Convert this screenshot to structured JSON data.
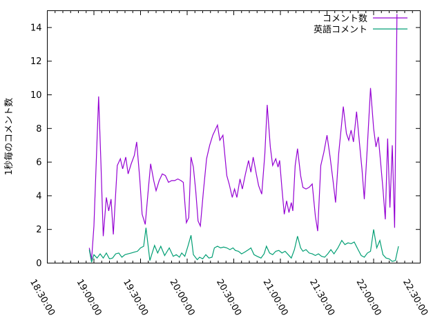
{
  "window": {
    "background": "#ffffff",
    "border_color": "#000000",
    "text_color": "#000000"
  },
  "chart_data": {
    "type": "line",
    "title": "",
    "xlabel": "",
    "ylabel": "1秒毎のコメント数",
    "grid": false,
    "x_axis": {
      "kind": "time",
      "start_label": "18:30:00",
      "end_label": "22:30:00",
      "range_minutes": [
        0,
        240
      ],
      "major_step_minutes": 30,
      "minor_step_minutes": 5,
      "labels_rotated": true,
      "tick_labels": [
        "18:30:00",
        "19:00:00",
        "19:30:00",
        "20:00:00",
        "20:30:00",
        "21:00:00",
        "21:30:00",
        "22:00:00",
        "22:30:00"
      ]
    },
    "y_axis": {
      "min": 0,
      "max": 15,
      "label_step": 2,
      "tick_labels": [
        "0",
        "2",
        "4",
        "6",
        "8",
        "10",
        "12",
        "14"
      ]
    },
    "legend": {
      "position": "top-right",
      "entries": [
        {
          "label": "コメント数",
          "color": "#9400d3"
        },
        {
          "label": "英語コメント",
          "color": "#009e73"
        }
      ]
    },
    "series": [
      {
        "name": "コメント数",
        "color": "#9400d3",
        "points": [
          [
            27,
            0.9
          ],
          [
            28.5,
            0.2
          ],
          [
            30,
            2.2
          ],
          [
            33,
            9.9
          ],
          [
            34.5,
            6.0
          ],
          [
            36,
            1.6
          ],
          [
            38,
            3.9
          ],
          [
            39.5,
            3.1
          ],
          [
            41,
            3.8
          ],
          [
            42.5,
            1.7
          ],
          [
            45,
            5.8
          ],
          [
            47,
            6.2
          ],
          [
            48.5,
            5.6
          ],
          [
            50.5,
            6.3
          ],
          [
            52,
            5.3
          ],
          [
            54,
            5.9
          ],
          [
            56,
            6.4
          ],
          [
            57.5,
            7.2
          ],
          [
            59.5,
            5.0
          ],
          [
            61,
            2.9
          ],
          [
            63,
            2.3
          ],
          [
            65,
            4.4
          ],
          [
            66.5,
            5.9
          ],
          [
            68.5,
            4.9
          ],
          [
            70,
            4.3
          ],
          [
            72,
            4.9
          ],
          [
            74,
            5.3
          ],
          [
            76,
            5.2
          ],
          [
            78,
            4.8
          ],
          [
            80,
            4.9
          ],
          [
            82,
            4.9
          ],
          [
            84,
            5.0
          ],
          [
            86,
            4.9
          ],
          [
            87.5,
            4.8
          ],
          [
            89.5,
            2.4
          ],
          [
            91,
            2.7
          ],
          [
            92.5,
            6.3
          ],
          [
            94,
            5.7
          ],
          [
            95.5,
            4.3
          ],
          [
            97,
            2.5
          ],
          [
            98.5,
            2.2
          ],
          [
            100.5,
            4.3
          ],
          [
            102.5,
            6.2
          ],
          [
            104.5,
            7.0
          ],
          [
            106.5,
            7.6
          ],
          [
            109.5,
            8.2
          ],
          [
            111,
            7.3
          ],
          [
            113,
            7.6
          ],
          [
            115.5,
            5.2
          ],
          [
            117,
            4.7
          ],
          [
            119,
            3.9
          ],
          [
            120.5,
            4.4
          ],
          [
            122,
            3.9
          ],
          [
            124,
            5.0
          ],
          [
            125.5,
            4.4
          ],
          [
            127.5,
            5.3
          ],
          [
            129.5,
            6.1
          ],
          [
            131,
            5.4
          ],
          [
            132.5,
            6.3
          ],
          [
            134.5,
            5.3
          ],
          [
            136,
            4.6
          ],
          [
            138,
            4.1
          ],
          [
            140,
            6.5
          ],
          [
            141.5,
            9.4
          ],
          [
            143.5,
            6.9
          ],
          [
            145,
            5.8
          ],
          [
            147,
            6.2
          ],
          [
            148.5,
            5.7
          ],
          [
            149.5,
            6.1
          ],
          [
            151,
            4.4
          ],
          [
            152.5,
            2.9
          ],
          [
            154,
            3.7
          ],
          [
            155.5,
            3.0
          ],
          [
            157,
            3.6
          ],
          [
            158,
            3.1
          ],
          [
            159.5,
            5.8
          ],
          [
            161,
            6.8
          ],
          [
            163,
            5.2
          ],
          [
            164.5,
            4.5
          ],
          [
            166.5,
            4.4
          ],
          [
            168.5,
            4.5
          ],
          [
            170.5,
            4.7
          ],
          [
            172.5,
            2.8
          ],
          [
            174,
            1.9
          ],
          [
            176,
            5.8
          ],
          [
            178,
            6.6
          ],
          [
            180,
            7.6
          ],
          [
            182,
            6.3
          ],
          [
            184,
            4.8
          ],
          [
            185.5,
            3.6
          ],
          [
            187.5,
            6.5
          ],
          [
            190.5,
            9.3
          ],
          [
            192.5,
            7.7
          ],
          [
            194,
            7.3
          ],
          [
            195.5,
            7.9
          ],
          [
            197,
            7.2
          ],
          [
            199,
            9.0
          ],
          [
            201,
            7.0
          ],
          [
            202.5,
            5.6
          ],
          [
            204,
            3.8
          ],
          [
            206,
            7.0
          ],
          [
            208,
            10.4
          ],
          [
            210,
            8.0
          ],
          [
            211.5,
            6.9
          ],
          [
            213,
            7.5
          ],
          [
            214.5,
            6.0
          ],
          [
            216,
            4.4
          ],
          [
            217.5,
            2.6
          ],
          [
            219,
            7.4
          ],
          [
            220.5,
            3.3
          ],
          [
            222,
            7.0
          ],
          [
            223.5,
            2.1
          ],
          [
            225,
            14.8
          ]
        ]
      },
      {
        "name": "英語コメント",
        "color": "#009e73",
        "points": [
          [
            27,
            0.8
          ],
          [
            28.5,
            0.05
          ],
          [
            30,
            0.5
          ],
          [
            32,
            0.3
          ],
          [
            34,
            0.55
          ],
          [
            36,
            0.3
          ],
          [
            38,
            0.6
          ],
          [
            40,
            0.25
          ],
          [
            42,
            0.3
          ],
          [
            44,
            0.55
          ],
          [
            46,
            0.6
          ],
          [
            48,
            0.35
          ],
          [
            50,
            0.5
          ],
          [
            52,
            0.55
          ],
          [
            54,
            0.6
          ],
          [
            56,
            0.65
          ],
          [
            58,
            0.7
          ],
          [
            60,
            0.9
          ],
          [
            62,
            1.0
          ],
          [
            63.5,
            2.1
          ],
          [
            66,
            0.15
          ],
          [
            69,
            1.05
          ],
          [
            71,
            0.6
          ],
          [
            73,
            1.0
          ],
          [
            75.5,
            0.45
          ],
          [
            78.5,
            0.9
          ],
          [
            81,
            0.4
          ],
          [
            83,
            0.5
          ],
          [
            85,
            0.35
          ],
          [
            86.5,
            0.6
          ],
          [
            88.5,
            0.4
          ],
          [
            90.5,
            1.0
          ],
          [
            92.5,
            1.65
          ],
          [
            94,
            0.5
          ],
          [
            96.5,
            0.2
          ],
          [
            98,
            0.35
          ],
          [
            100,
            0.25
          ],
          [
            102,
            0.5
          ],
          [
            104,
            0.3
          ],
          [
            106,
            0.35
          ],
          [
            107.5,
            0.9
          ],
          [
            109.5,
            1.0
          ],
          [
            111.5,
            0.9
          ],
          [
            113.5,
            0.95
          ],
          [
            115.5,
            0.9
          ],
          [
            117.5,
            0.8
          ],
          [
            119.5,
            0.9
          ],
          [
            121,
            0.75
          ],
          [
            123,
            0.7
          ],
          [
            125,
            0.55
          ],
          [
            127,
            0.65
          ],
          [
            129.5,
            0.8
          ],
          [
            131,
            0.9
          ],
          [
            133,
            0.5
          ],
          [
            135,
            0.4
          ],
          [
            137.5,
            0.3
          ],
          [
            139.5,
            0.55
          ],
          [
            141,
            1.0
          ],
          [
            143,
            0.6
          ],
          [
            145,
            0.5
          ],
          [
            147,
            0.7
          ],
          [
            149,
            0.75
          ],
          [
            151,
            0.6
          ],
          [
            153,
            0.7
          ],
          [
            155,
            0.5
          ],
          [
            157,
            0.3
          ],
          [
            159,
            0.8
          ],
          [
            161,
            1.6
          ],
          [
            163,
            0.9
          ],
          [
            164.5,
            0.7
          ],
          [
            166.5,
            0.8
          ],
          [
            168.5,
            0.6
          ],
          [
            170.5,
            0.55
          ],
          [
            172.5,
            0.45
          ],
          [
            174.5,
            0.55
          ],
          [
            176.5,
            0.4
          ],
          [
            178.5,
            0.35
          ],
          [
            180.5,
            0.55
          ],
          [
            182.5,
            0.8
          ],
          [
            184.5,
            0.55
          ],
          [
            187,
            0.9
          ],
          [
            189.5,
            1.35
          ],
          [
            191.5,
            1.1
          ],
          [
            193.5,
            1.2
          ],
          [
            195.5,
            1.15
          ],
          [
            197.5,
            1.25
          ],
          [
            200,
            0.8
          ],
          [
            202,
            0.45
          ],
          [
            204,
            0.35
          ],
          [
            206,
            0.6
          ],
          [
            208,
            0.7
          ],
          [
            210,
            2.0
          ],
          [
            212,
            0.9
          ],
          [
            214,
            1.35
          ],
          [
            216,
            0.5
          ],
          [
            218,
            0.3
          ],
          [
            220,
            0.25
          ],
          [
            222,
            0.1
          ],
          [
            224,
            0.15
          ],
          [
            226,
            1.0
          ]
        ]
      }
    ]
  }
}
